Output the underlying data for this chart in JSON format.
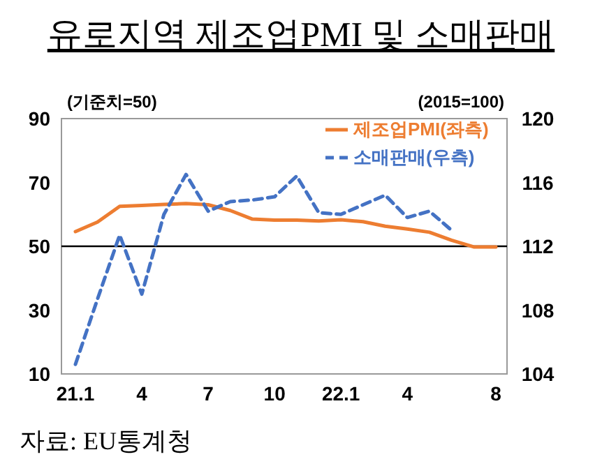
{
  "chart_data": {
    "type": "line",
    "title": "유로지역 제조업PMI 및 소매판매",
    "categories": [
      "21.1",
      null,
      null,
      "4",
      null,
      null,
      "7",
      null,
      null,
      "10",
      null,
      null,
      "22.1",
      null,
      null,
      "4",
      null,
      null,
      null,
      "8"
    ],
    "series": [
      {
        "name": "제조업PMI(좌측)",
        "color": "#ed7d31",
        "line_style": "solid",
        "values": [
          54.6,
          57.6,
          62.5,
          62.8,
          63.1,
          63.4,
          63.0,
          61.2,
          58.5,
          58.2,
          58.2,
          57.9,
          58.3,
          57.7,
          56.3,
          55.4,
          54.4,
          51.9,
          49.8,
          49.8
        ]
      },
      {
        "name": "소매판매(우측)",
        "color": "#4472c4",
        "line_style": "dashed",
        "axis": "y2",
        "values": [
          104.6,
          108.7,
          112.7,
          109.0,
          114.0,
          116.5,
          114.2,
          114.8,
          114.9,
          115.1,
          116.4,
          114.1,
          114.0,
          114.6,
          115.2,
          113.8,
          114.2,
          113.0,
          null,
          null
        ]
      }
    ],
    "ylim": [
      10,
      90
    ],
    "yticks": [
      10,
      30,
      50,
      70,
      90
    ],
    "y2lim": [
      104,
      120
    ],
    "y2ticks": [
      104,
      108,
      112,
      116,
      120
    ],
    "ref_lines": [
      {
        "axis": "y",
        "value": 50,
        "color": "#000000"
      }
    ],
    "legend": "top right",
    "grid": false,
    "annotations": [
      "(기준치=50)",
      "(2015=100)",
      "자료: EU통계청"
    ]
  }
}
